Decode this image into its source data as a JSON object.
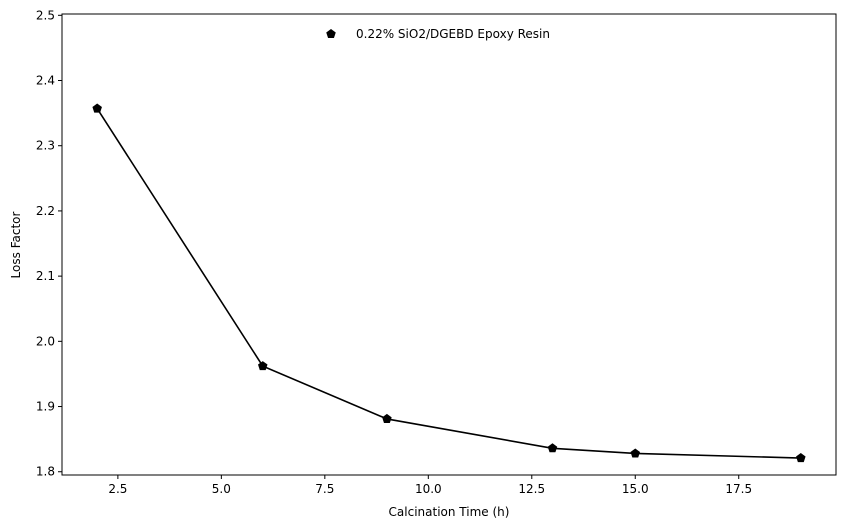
{
  "chart_data": {
    "type": "line",
    "xlabel": "Calcination Time (h)",
    "ylabel": "Loss Factor",
    "xlim": [
      1.15,
      19.85
    ],
    "ylim": [
      1.795,
      2.502
    ],
    "xticks": [
      2.5,
      5.0,
      7.5,
      10.0,
      12.5,
      15.0,
      17.5
    ],
    "yticks": [
      1.8,
      1.9,
      2.0,
      2.1,
      2.2,
      2.3,
      2.4,
      2.5
    ],
    "grid": false,
    "legend_position": "top-center",
    "series": [
      {
        "name": "0.22% SiO2/DGEBD Epoxy Resin",
        "color": "#000000",
        "marker": "pentagon",
        "x": [
          2,
          6,
          9,
          13,
          15,
          19
        ],
        "y": [
          2.357,
          1.962,
          1.881,
          1.836,
          1.828,
          1.821
        ]
      }
    ]
  }
}
